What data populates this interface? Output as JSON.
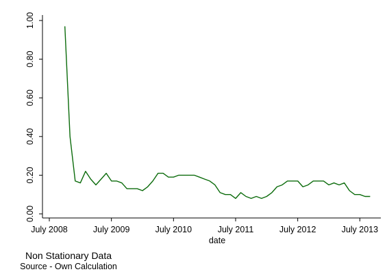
{
  "chart_data": {
    "type": "line",
    "title": "",
    "xlabel": "date",
    "ylabel": "",
    "x": [
      "2008-10",
      "2008-11",
      "2008-12",
      "2009-01",
      "2009-02",
      "2009-03",
      "2009-04",
      "2009-05",
      "2009-06",
      "2009-07",
      "2009-08",
      "2009-09",
      "2009-10",
      "2009-11",
      "2009-12",
      "2010-01",
      "2010-02",
      "2010-03",
      "2010-04",
      "2010-05",
      "2010-06",
      "2010-07",
      "2010-08",
      "2010-09",
      "2010-10",
      "2010-11",
      "2010-12",
      "2011-01",
      "2011-02",
      "2011-03",
      "2011-04",
      "2011-05",
      "2011-06",
      "2011-07",
      "2011-08",
      "2011-09",
      "2011-10",
      "2011-11",
      "2011-12",
      "2012-01",
      "2012-02",
      "2012-03",
      "2012-04",
      "2012-05",
      "2012-06",
      "2012-07",
      "2012-08",
      "2012-09",
      "2012-10",
      "2012-11",
      "2012-12",
      "2013-01",
      "2013-02",
      "2013-03",
      "2013-04",
      "2013-05",
      "2013-06",
      "2013-07",
      "2013-08",
      "2013-09",
      "2013-10"
    ],
    "series": [
      {
        "name": "",
        "color": "#0b6b0b",
        "values": [
          0.97,
          0.4,
          0.17,
          0.16,
          0.22,
          0.18,
          0.15,
          0.18,
          0.21,
          0.17,
          0.17,
          0.16,
          0.13,
          0.13,
          0.13,
          0.12,
          0.14,
          0.17,
          0.21,
          0.21,
          0.19,
          0.19,
          0.2,
          0.2,
          0.2,
          0.2,
          0.19,
          0.18,
          0.17,
          0.15,
          0.11,
          0.1,
          0.1,
          0.08,
          0.11,
          0.09,
          0.08,
          0.09,
          0.08,
          0.09,
          0.11,
          0.14,
          0.15,
          0.17,
          0.17,
          0.17,
          0.14,
          0.15,
          0.17,
          0.17,
          0.17,
          0.15,
          0.16,
          0.15,
          0.16,
          0.12,
          0.1,
          0.1,
          0.09,
          0.09,
          null
        ]
      }
    ],
    "xticks": [
      {
        "label": "July 2008",
        "date": "2008-07"
      },
      {
        "label": "July 2009",
        "date": "2009-07"
      },
      {
        "label": "July 2010",
        "date": "2010-07"
      },
      {
        "label": "July 2011",
        "date": "2011-07"
      },
      {
        "label": "July 2012",
        "date": "2012-07"
      },
      {
        "label": "July 2013",
        "date": "2013-07"
      }
    ],
    "yticks": [
      "0.00",
      "0.20",
      "0.40",
      "0.60",
      "0.80",
      "1.00"
    ],
    "ylim": [
      0,
      1
    ],
    "xlim": [
      "2008-07",
      "2013-10"
    ],
    "grid": false,
    "legend": "none"
  },
  "note": {
    "title": "Non Stationary Data",
    "source": "Source - Own Calculation"
  }
}
